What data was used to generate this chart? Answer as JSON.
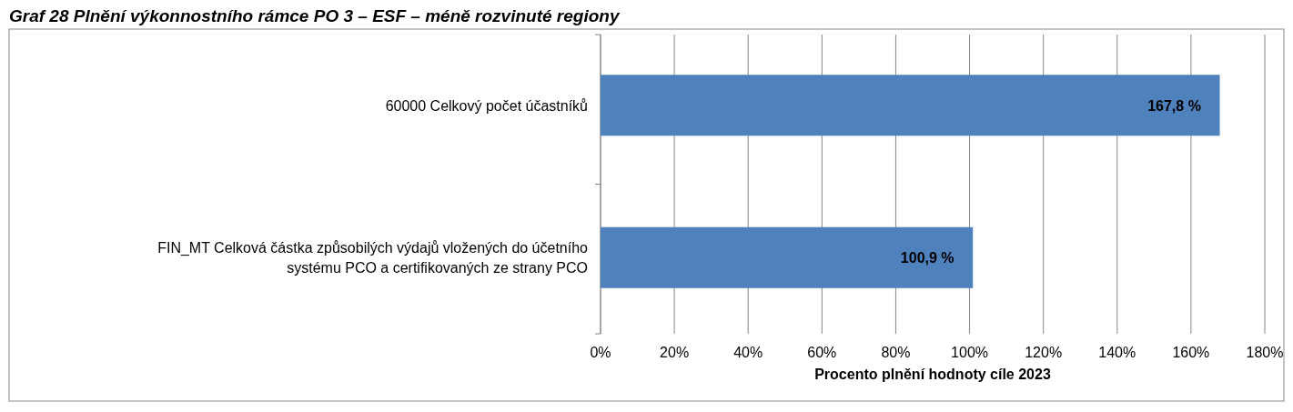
{
  "chart_data": {
    "type": "bar",
    "orientation": "horizontal",
    "title": "Graf 28 Plnění výkonnostního rámce PO 3 – ESF – méně rozvinuté regiony",
    "categories": [
      "60000 Celkový počet účastníků",
      "FIN_MT Celková částka způsobilých výdajů vložených do účetního systému PCO a certifikovaných ze strany PCO"
    ],
    "series": [
      {
        "color": "#4f81bd",
        "values": [
          167.8,
          100.9
        ]
      }
    ],
    "value_labels": [
      "167,8 %",
      "100,9 %"
    ],
    "xlabel": "Procento plnění hodnoty cíle 2023",
    "xlim": [
      0,
      180
    ],
    "xticks": [
      {
        "value": 0,
        "label": "0%"
      },
      {
        "value": 20,
        "label": "20%"
      },
      {
        "value": 40,
        "label": "40%"
      },
      {
        "value": 60,
        "label": "60%"
      },
      {
        "value": 80,
        "label": "80%"
      },
      {
        "value": 100,
        "label": "100%"
      },
      {
        "value": 120,
        "label": "120%"
      },
      {
        "value": 140,
        "label": "140%"
      },
      {
        "value": 160,
        "label": "160%"
      },
      {
        "value": 180,
        "label": "180%"
      }
    ],
    "grid": "x"
  }
}
